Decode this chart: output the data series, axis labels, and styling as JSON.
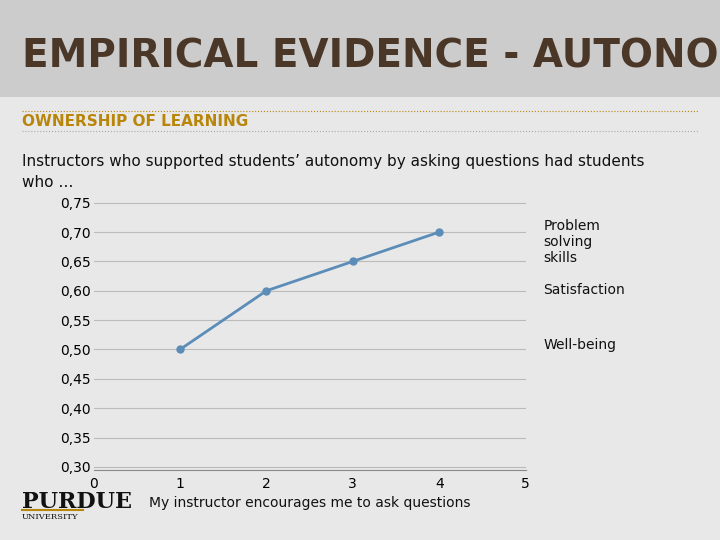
{
  "title": "EMPIRICAL EVIDENCE - AUTONOMY",
  "subtitle": "OWNERSHIP OF LEARNING",
  "description": "Instructors who supported students’ autonomy by asking questions had students\nwho …",
  "x_data": [
    1,
    2,
    3,
    4
  ],
  "y_data": [
    0.5,
    0.6,
    0.65,
    0.7
  ],
  "xlabel": "My instructor encourages me to ask questions",
  "xlim": [
    0,
    5
  ],
  "ylim": [
    0.3,
    0.75
  ],
  "yticks": [
    0.3,
    0.35,
    0.4,
    0.45,
    0.5,
    0.55,
    0.6,
    0.65,
    0.7,
    0.75
  ],
  "xticks": [
    0,
    1,
    2,
    3,
    4,
    5
  ],
  "line_color": "#5B8DB8",
  "marker_style": "o",
  "marker_size": 5,
  "legend_labels": [
    "Problem\nsolving\nskills",
    "Satisfaction",
    "Well-being"
  ],
  "bg_color": "#E8E8E8",
  "title_bg_color": "#CCCCCC",
  "title_color": "#4A3728",
  "subtitle_color": "#B8860B",
  "grid_color": "#BBBBBB",
  "title_fontsize": 28,
  "subtitle_fontsize": 11,
  "desc_fontsize": 11,
  "axis_fontsize": 10,
  "xlabel_fontsize": 10,
  "legend_fontsize": 10,
  "purdue_color": "#111111",
  "gold_color": "#B8860B"
}
